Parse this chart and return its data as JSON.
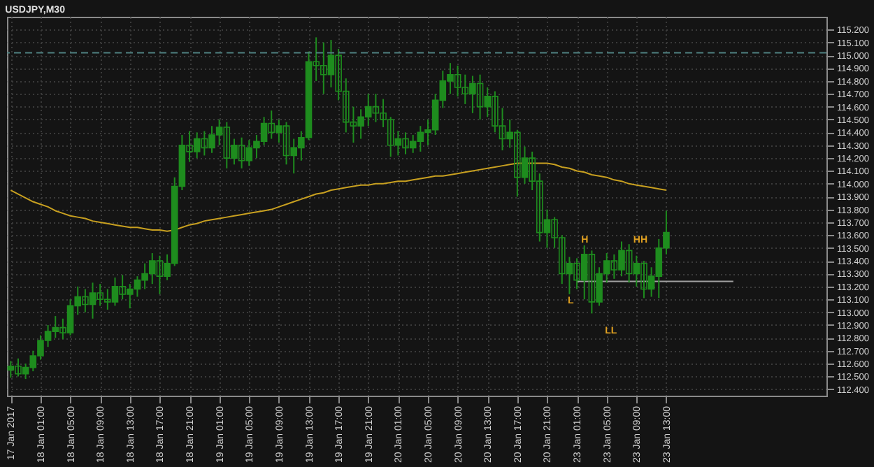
{
  "chart_data": {
    "type": "candlestick",
    "title": "USDJPY,M30",
    "color": "#1e8c1e",
    "categories": [
      "17 Jan 2017",
      null,
      null,
      null,
      "18 Jan 01:00",
      null,
      null,
      null,
      "18 Jan 05:00",
      null,
      null,
      null,
      "18 Jan 09:00",
      null,
      null,
      null,
      "18 Jan 13:00",
      null,
      null,
      null,
      "18 Jan 17:00",
      null,
      null,
      null,
      "18 Jan 21:00",
      null,
      null,
      null,
      "19 Jan 01:00",
      null,
      null,
      null,
      "19 Jan 05:00",
      null,
      null,
      null,
      "19 Jan 09:00",
      null,
      null,
      null,
      "19 Jan 13:00",
      null,
      null,
      null,
      "19 Jan 17:00",
      null,
      null,
      null,
      "19 Jan 21:00",
      null,
      null,
      null,
      "20 Jan 01:00",
      null,
      null,
      null,
      "20 Jan 05:00",
      null,
      null,
      null,
      "20 Jan 09:00",
      null,
      null,
      null,
      "20 Jan 13:00",
      null,
      null,
      null,
      "20 Jan 17:00",
      null,
      null,
      null,
      "20 Jan 21:00",
      null,
      null,
      null,
      "23 Jan 01:00",
      null,
      null,
      null,
      "23 Jan 05:00",
      null,
      null,
      null,
      "23 Jan 09:00",
      null,
      null,
      null,
      "23 Jan 13:00",
      null,
      null,
      null,
      null,
      null,
      null,
      null,
      null,
      null,
      null,
      null,
      null,
      null,
      null,
      null,
      null,
      null,
      null,
      null,
      null,
      null
    ],
    "ohlc": [
      [
        112.55,
        112.62,
        112.49,
        112.58
      ],
      [
        112.58,
        112.64,
        112.5,
        112.52
      ],
      [
        112.52,
        112.6,
        112.48,
        112.57
      ],
      [
        112.57,
        112.7,
        112.54,
        112.66
      ],
      [
        112.66,
        112.82,
        112.63,
        112.78
      ],
      [
        112.78,
        112.9,
        112.73,
        112.85
      ],
      [
        112.85,
        112.97,
        112.8,
        112.88
      ],
      [
        112.88,
        112.95,
        112.79,
        112.84
      ],
      [
        112.84,
        113.1,
        112.82,
        113.05
      ],
      [
        113.05,
        113.2,
        112.98,
        113.12
      ],
      [
        113.12,
        113.18,
        113.0,
        113.06
      ],
      [
        113.06,
        113.23,
        112.95,
        113.15
      ],
      [
        113.15,
        113.22,
        113.05,
        113.1
      ],
      [
        113.1,
        113.18,
        113.02,
        113.08
      ],
      [
        113.08,
        113.27,
        113.05,
        113.2
      ],
      [
        113.2,
        113.29,
        113.1,
        113.14
      ],
      [
        113.14,
        113.22,
        113.03,
        113.18
      ],
      [
        113.18,
        113.28,
        113.12,
        113.25
      ],
      [
        113.25,
        113.38,
        113.18,
        113.3
      ],
      [
        113.3,
        113.46,
        113.22,
        113.4
      ],
      [
        113.4,
        113.44,
        113.14,
        113.28
      ],
      [
        113.28,
        113.45,
        113.25,
        113.38
      ],
      [
        113.38,
        114.05,
        113.36,
        113.98
      ],
      [
        113.98,
        114.38,
        113.95,
        114.3
      ],
      [
        114.3,
        114.41,
        114.17,
        114.25
      ],
      [
        114.25,
        114.4,
        114.2,
        114.35
      ],
      [
        114.35,
        114.41,
        114.22,
        114.28
      ],
      [
        114.28,
        114.45,
        114.24,
        114.38
      ],
      [
        114.38,
        114.5,
        114.3,
        114.44
      ],
      [
        114.44,
        114.48,
        114.12,
        114.2
      ],
      [
        114.2,
        114.35,
        114.15,
        114.3
      ],
      [
        114.3,
        114.36,
        114.12,
        114.18
      ],
      [
        114.18,
        114.34,
        114.14,
        114.28
      ],
      [
        114.28,
        114.38,
        114.2,
        114.33
      ],
      [
        114.33,
        114.52,
        114.3,
        114.47
      ],
      [
        114.47,
        114.57,
        114.35,
        114.4
      ],
      [
        114.4,
        114.5,
        114.32,
        114.45
      ],
      [
        114.45,
        114.48,
        114.15,
        114.22
      ],
      [
        114.22,
        114.35,
        114.08,
        114.28
      ],
      [
        114.28,
        114.41,
        114.18,
        114.36
      ],
      [
        114.36,
        115.03,
        114.34,
        114.95
      ],
      [
        114.95,
        115.14,
        114.8,
        114.92
      ],
      [
        114.92,
        115.1,
        114.7,
        114.85
      ],
      [
        114.85,
        115.12,
        114.75,
        115.0
      ],
      [
        115.0,
        115.05,
        114.65,
        114.72
      ],
      [
        114.72,
        114.82,
        114.4,
        114.48
      ],
      [
        114.48,
        114.6,
        114.32,
        114.45
      ],
      [
        114.45,
        114.58,
        114.35,
        114.52
      ],
      [
        114.52,
        114.7,
        114.45,
        114.6
      ],
      [
        114.6,
        114.7,
        114.48,
        114.55
      ],
      [
        114.55,
        114.66,
        114.44,
        114.5
      ],
      [
        114.5,
        114.52,
        114.21,
        114.3
      ],
      [
        114.3,
        114.41,
        114.22,
        114.35
      ],
      [
        114.35,
        114.4,
        114.23,
        114.28
      ],
      [
        114.28,
        114.38,
        114.24,
        114.33
      ],
      [
        114.33,
        114.45,
        114.25,
        114.4
      ],
      [
        114.4,
        114.5,
        114.3,
        114.42
      ],
      [
        114.42,
        114.7,
        114.38,
        114.65
      ],
      [
        114.65,
        114.88,
        114.59,
        114.8
      ],
      [
        114.8,
        114.94,
        114.7,
        114.85
      ],
      [
        114.85,
        114.92,
        114.68,
        114.75
      ],
      [
        114.75,
        114.85,
        114.62,
        114.7
      ],
      [
        114.7,
        114.84,
        114.55,
        114.78
      ],
      [
        114.78,
        114.85,
        114.5,
        114.6
      ],
      [
        114.6,
        114.75,
        114.52,
        114.68
      ],
      [
        114.68,
        114.72,
        114.4,
        114.45
      ],
      [
        114.45,
        114.59,
        114.26,
        114.35
      ],
      [
        114.35,
        114.5,
        114.28,
        114.4
      ],
      [
        114.4,
        114.42,
        113.9,
        114.05
      ],
      [
        114.05,
        114.29,
        114.0,
        114.2
      ],
      [
        114.2,
        114.25,
        113.95,
        114.02
      ],
      [
        114.02,
        114.08,
        113.55,
        113.62
      ],
      [
        113.62,
        113.8,
        113.5,
        113.72
      ],
      [
        113.72,
        113.74,
        113.5,
        113.58
      ],
      [
        113.58,
        113.6,
        113.22,
        113.3
      ],
      [
        113.3,
        113.43,
        113.14,
        113.38
      ],
      [
        113.38,
        113.42,
        113.18,
        113.25
      ],
      [
        113.25,
        113.52,
        113.1,
        113.45
      ],
      [
        113.45,
        113.48,
        112.99,
        113.08
      ],
      [
        113.08,
        113.35,
        113.05,
        113.3
      ],
      [
        113.3,
        113.46,
        113.23,
        113.4
      ],
      [
        113.4,
        113.45,
        113.26,
        113.33
      ],
      [
        113.33,
        113.55,
        113.28,
        113.48
      ],
      [
        113.48,
        113.53,
        113.23,
        113.3
      ],
      [
        113.3,
        113.44,
        113.2,
        113.38
      ],
      [
        113.38,
        113.4,
        113.11,
        113.18
      ],
      [
        113.18,
        113.35,
        113.12,
        113.28
      ],
      [
        113.28,
        113.57,
        113.11,
        113.5
      ],
      [
        113.5,
        113.79,
        113.45,
        113.62
      ],
      null,
      null,
      null,
      null,
      null,
      null,
      null,
      null,
      null,
      null,
      null,
      null,
      null,
      null,
      null,
      null,
      null,
      null,
      null,
      null,
      null
    ],
    "series": [
      {
        "type": "line",
        "color": "#c8a020",
        "values": [
          113.95,
          113.92,
          113.89,
          113.86,
          113.84,
          113.82,
          113.79,
          113.77,
          113.75,
          113.74,
          113.73,
          113.71,
          113.7,
          113.69,
          113.68,
          113.67,
          113.66,
          113.66,
          113.65,
          113.64,
          113.64,
          113.63,
          113.64,
          113.66,
          113.68,
          113.69,
          113.71,
          113.72,
          113.73,
          113.74,
          113.75,
          113.76,
          113.77,
          113.78,
          113.79,
          113.8,
          113.82,
          113.84,
          113.86,
          113.88,
          113.9,
          113.92,
          113.93,
          113.95,
          113.96,
          113.97,
          113.98,
          113.99,
          113.99,
          114.0,
          114.0,
          114.01,
          114.02,
          114.02,
          114.03,
          114.04,
          114.05,
          114.06,
          114.06,
          114.07,
          114.08,
          114.09,
          114.1,
          114.11,
          114.12,
          114.13,
          114.14,
          114.15,
          114.16,
          114.16,
          114.16,
          114.16,
          114.16,
          114.15,
          114.13,
          114.12,
          114.1,
          114.09,
          114.07,
          114.06,
          114.05,
          114.03,
          114.02,
          114.0,
          113.99,
          113.98,
          113.97,
          113.96,
          113.95,
          null,
          null,
          null,
          null,
          null,
          null,
          null,
          null,
          null,
          null,
          null,
          null,
          null,
          null,
          null,
          null,
          null,
          null,
          null,
          null,
          null
        ]
      },
      {
        "type": "line",
        "color": "#a0a0a0",
        "values": [
          null,
          null,
          null,
          null,
          null,
          null,
          null,
          null,
          null,
          null,
          null,
          null,
          null,
          null,
          null,
          null,
          null,
          null,
          null,
          null,
          null,
          null,
          null,
          null,
          null,
          null,
          null,
          null,
          null,
          null,
          null,
          null,
          null,
          null,
          null,
          null,
          null,
          null,
          null,
          null,
          null,
          null,
          null,
          null,
          null,
          null,
          null,
          null,
          null,
          null,
          null,
          null,
          null,
          null,
          null,
          null,
          null,
          null,
          null,
          null,
          null,
          null,
          null,
          null,
          null,
          null,
          null,
          null,
          null,
          null,
          null,
          null,
          null,
          null,
          null,
          null,
          113.24,
          113.24,
          113.24,
          113.24,
          113.24,
          113.24,
          113.24,
          113.24,
          113.24,
          113.24,
          113.24,
          113.24,
          113.24,
          113.24,
          113.24,
          113.24,
          113.24,
          113.24,
          113.24,
          113.24,
          113.24,
          113.24,
          null,
          null,
          null,
          null,
          null,
          null,
          null,
          null,
          null,
          null,
          null,
          null
        ]
      }
    ],
    "ylim": [
      112.35,
      115.3
    ],
    "yticks": [
      {
        "value": 112.4,
        "label": "112.400"
      },
      {
        "value": 112.5,
        "label": "112.500"
      },
      {
        "value": 112.6,
        "label": "112.600"
      },
      {
        "value": 112.7,
        "label": "112.700"
      },
      {
        "value": 112.8,
        "label": "112.800"
      },
      {
        "value": 112.9,
        "label": "112.900"
      },
      {
        "value": 113.0,
        "label": "113.000"
      },
      {
        "value": 113.1,
        "label": "113.100"
      },
      {
        "value": 113.2,
        "label": "113.200"
      },
      {
        "value": 113.3,
        "label": "113.300"
      },
      {
        "value": 113.4,
        "label": "113.400"
      },
      {
        "value": 113.5,
        "label": "113.500"
      },
      {
        "value": 113.6,
        "label": "113.600"
      },
      {
        "value": 113.7,
        "label": "113.700"
      },
      {
        "value": 113.8,
        "label": "113.800"
      },
      {
        "value": 113.9,
        "label": "113.900"
      },
      {
        "value": 114.0,
        "label": "114.000"
      },
      {
        "value": 114.1,
        "label": "114.100"
      },
      {
        "value": 114.2,
        "label": "114.200"
      },
      {
        "value": 114.3,
        "label": "114.300"
      },
      {
        "value": 114.4,
        "label": "114.400"
      },
      {
        "value": 114.5,
        "label": "114.500"
      },
      {
        "value": 114.6,
        "label": "114.600"
      },
      {
        "value": 114.7,
        "label": "114.700"
      },
      {
        "value": 114.8,
        "label": "114.800"
      },
      {
        "value": 114.9,
        "label": "114.900"
      },
      {
        "value": 115.0,
        "label": "115.000"
      },
      {
        "value": 115.1,
        "label": "115.100"
      },
      {
        "value": 115.2,
        "label": "115.200"
      }
    ],
    "ref_lines": [
      {
        "axis": "y",
        "value": 115.02,
        "color": "#4f8080",
        "line_style": "dashed"
      }
    ],
    "annotations": [
      "H",
      "HH",
      "L",
      "LL"
    ],
    "grid": true
  }
}
